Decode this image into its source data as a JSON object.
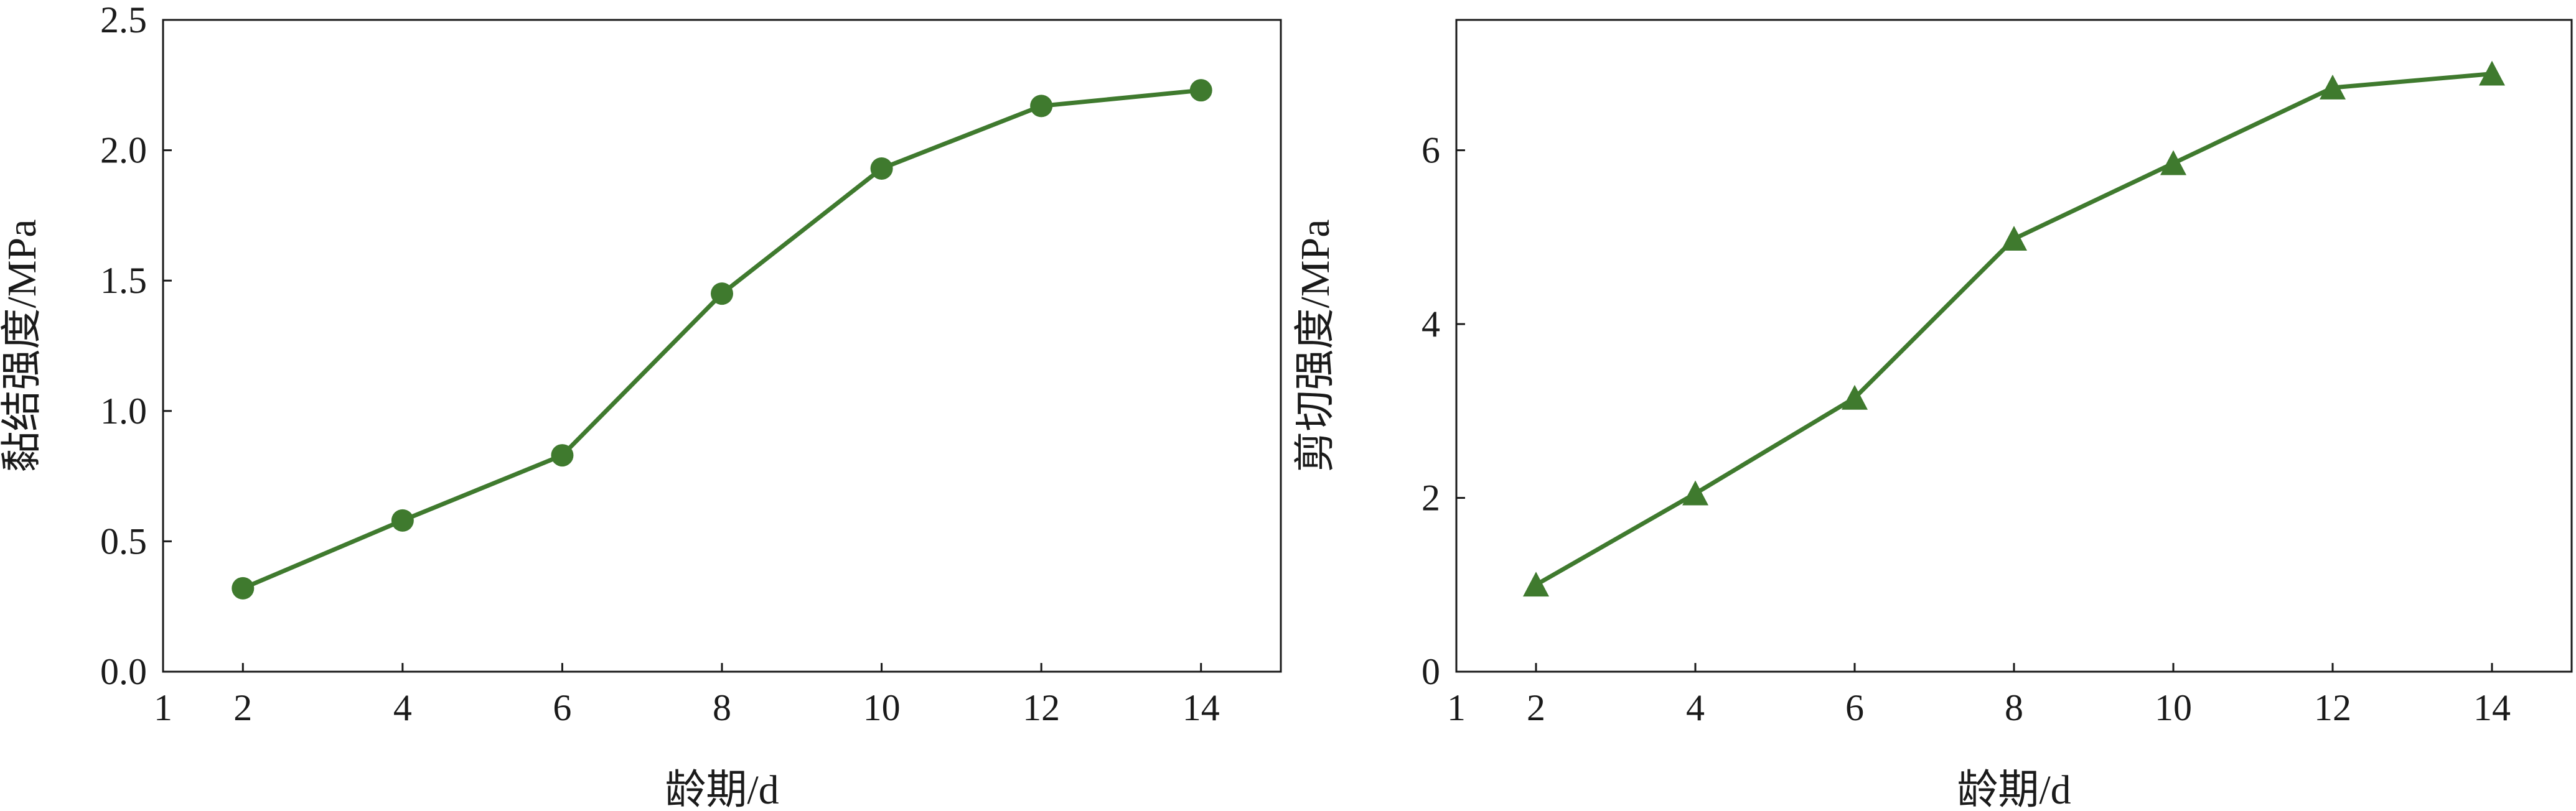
{
  "chart_data": [
    {
      "type": "line",
      "marker": "circle",
      "color": "#3f7a2e",
      "xlabel": "龄期/d",
      "ylabel": "黏结强度/MPa",
      "xlim": [
        1,
        15
      ],
      "ylim": [
        0,
        2.5
      ],
      "xticks": [
        "1",
        "2",
        "4",
        "6",
        "8",
        "10",
        "12",
        "14"
      ],
      "yticks": [
        "0.0",
        "0.5",
        "1.0",
        "1.5",
        "2.0",
        "2.5"
      ],
      "x": [
        2,
        4,
        6,
        8,
        10,
        12,
        14
      ],
      "values": [
        0.32,
        0.58,
        0.83,
        1.45,
        1.93,
        2.17,
        2.23
      ]
    },
    {
      "type": "line",
      "marker": "triangle",
      "color": "#3f7a2e",
      "xlabel": "龄期/d",
      "ylabel": "剪切强度/MPa",
      "xlim": [
        1,
        15
      ],
      "ylim": [
        0,
        7.5
      ],
      "xticks": [
        "1",
        "2",
        "4",
        "6",
        "8",
        "10",
        "12",
        "14"
      ],
      "yticks": [
        "0",
        "2",
        "4",
        "6"
      ],
      "x": [
        2,
        4,
        6,
        8,
        10,
        12,
        14
      ],
      "values": [
        1.0,
        2.05,
        3.15,
        4.98,
        5.85,
        6.72,
        6.88
      ]
    }
  ]
}
